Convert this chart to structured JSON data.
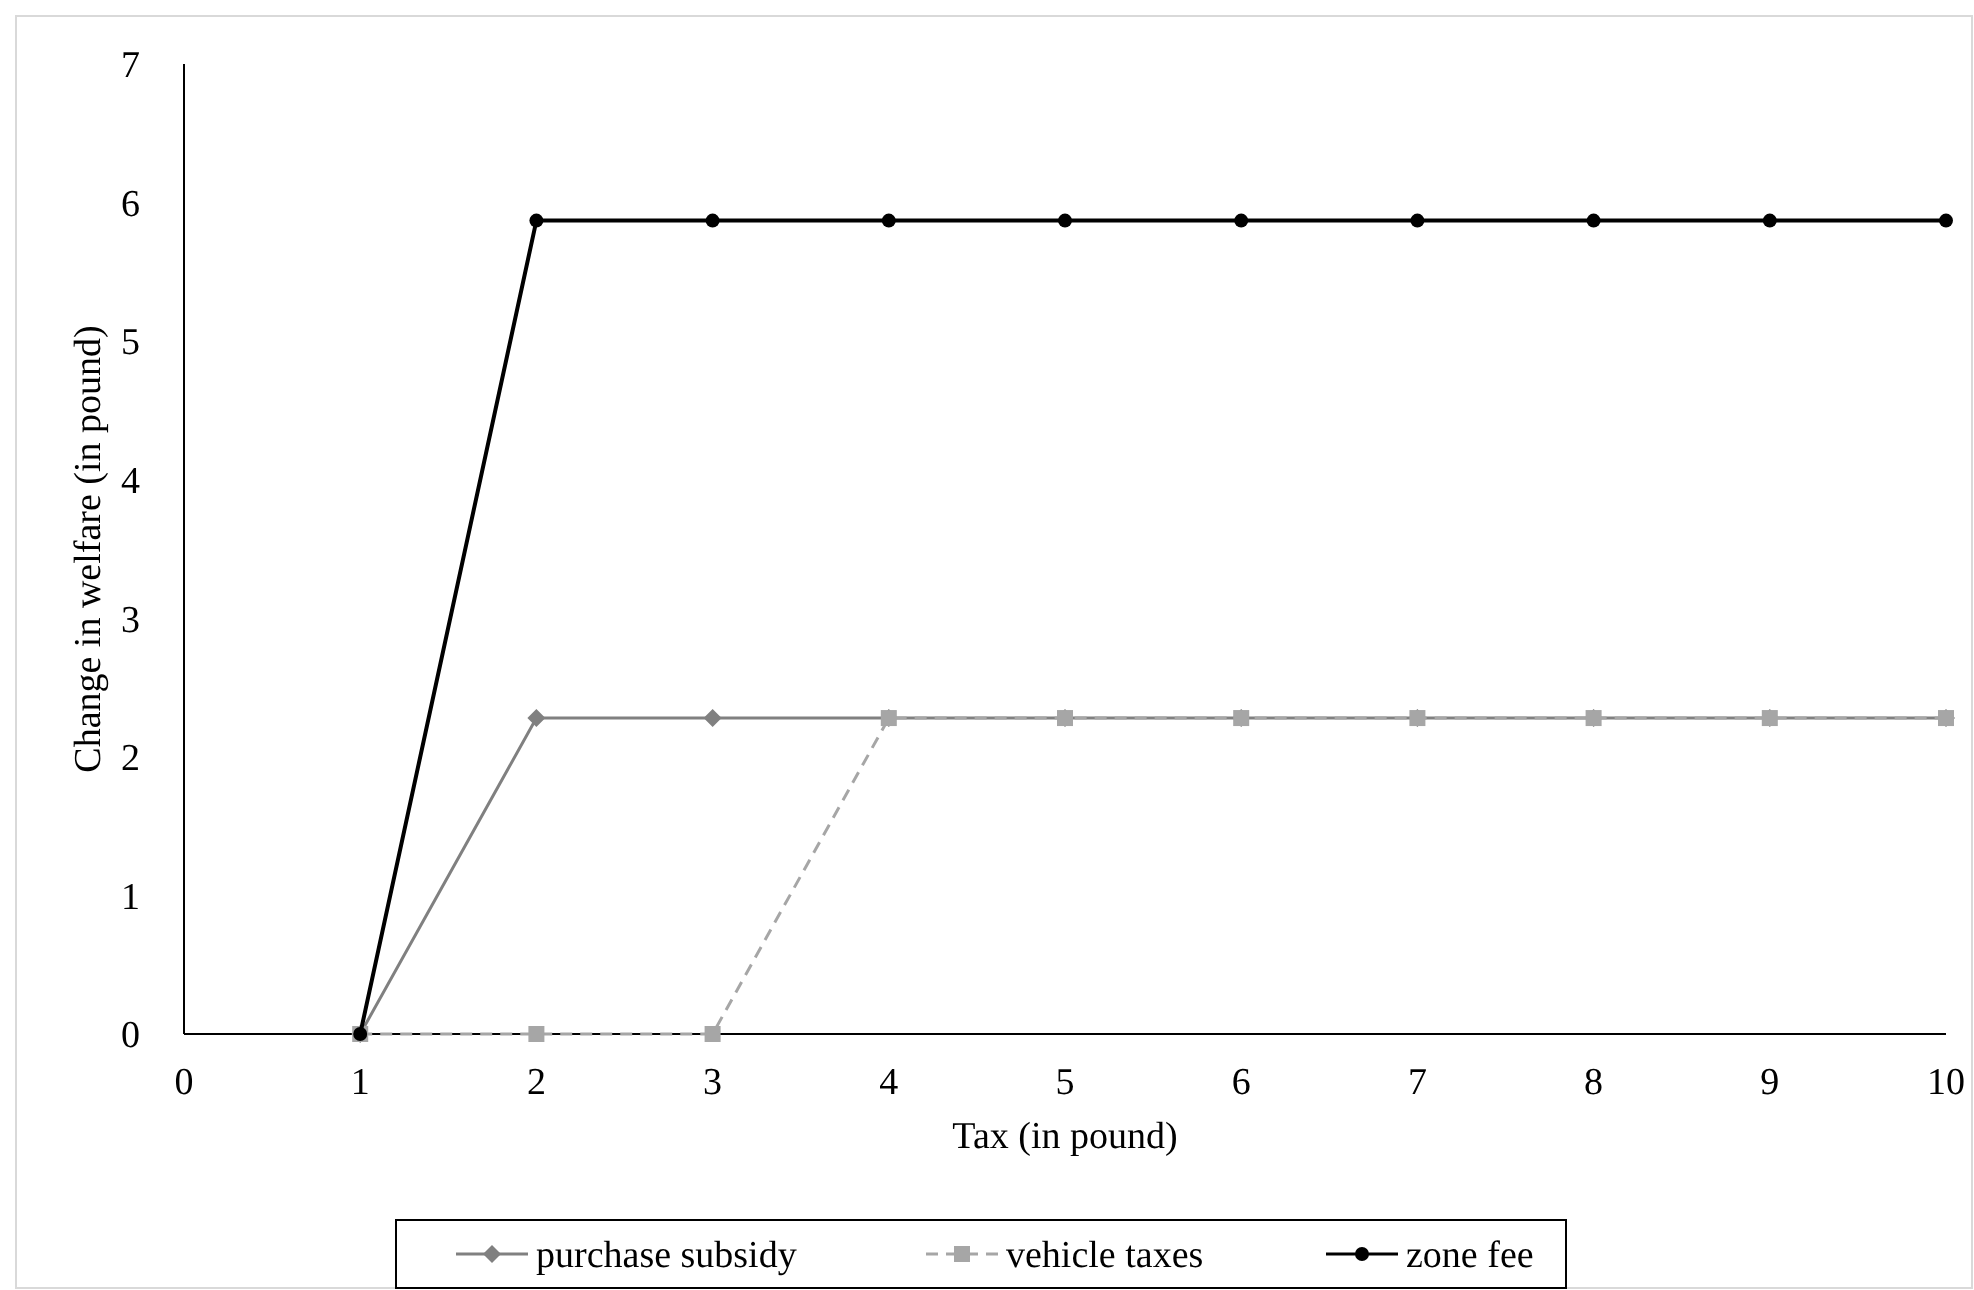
{
  "chart_data": {
    "type": "line",
    "xlabel": "Tax (in pound)",
    "ylabel": "Change in welfare (in pound)",
    "x": [
      1,
      2,
      3,
      4,
      5,
      6,
      7,
      8,
      9,
      10
    ],
    "series": [
      {
        "name": "purchase subsidy",
        "color": "#808080",
        "marker": "diamond",
        "line_style": "solid",
        "values": [
          0,
          2.28,
          2.28,
          2.28,
          2.28,
          2.28,
          2.28,
          2.28,
          2.28,
          2.28
        ]
      },
      {
        "name": "vehicle taxes",
        "color": "#a6a6a6",
        "marker": "square",
        "line_style": "dashed",
        "values": [
          0,
          0,
          0,
          2.28,
          2.28,
          2.28,
          2.28,
          2.28,
          2.28,
          2.28
        ]
      },
      {
        "name": "zone fee",
        "color": "#000000",
        "marker": "circle",
        "line_style": "solid",
        "values": [
          0,
          5.87,
          5.87,
          5.87,
          5.87,
          5.87,
          5.87,
          5.87,
          5.87,
          5.87
        ]
      }
    ],
    "xlim": [
      0,
      10
    ],
    "xticks": [
      0,
      1,
      2,
      3,
      4,
      5,
      6,
      7,
      8,
      9,
      10
    ],
    "ylim": [
      0,
      7
    ],
    "yticks": [
      0,
      1,
      2,
      3,
      4,
      5,
      6,
      7
    ],
    "grid": false,
    "legend": "bottom"
  }
}
